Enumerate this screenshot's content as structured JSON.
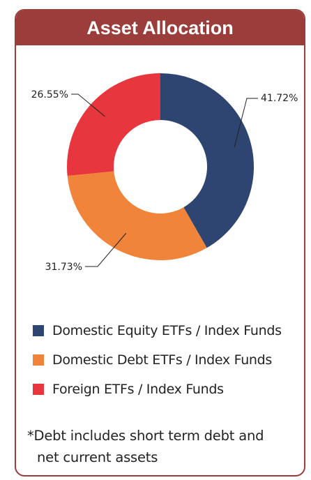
{
  "title": "Asset Allocation",
  "chart_data": {
    "type": "pie",
    "donut": true,
    "categories": [
      "Domestic Equity ETFs / Index Funds",
      "Domestic Debt ETFs / Index Funds",
      "Foreign ETFs / Index Funds"
    ],
    "values": [
      41.72,
      31.73,
      26.55
    ],
    "value_labels": [
      "41.72%",
      "31.73%",
      "26.55%"
    ],
    "colors": [
      "#2d4570",
      "#f0843a",
      "#e8363f"
    ],
    "legend_position": "bottom"
  },
  "legend": [
    {
      "label": "Domestic Equity ETFs / Index Funds",
      "color": "#2d4570"
    },
    {
      "label": "Domestic Debt ETFs / Index Funds",
      "color": "#f0843a"
    },
    {
      "label": "Foreign ETFs / Index Funds",
      "color": "#e8363f"
    }
  ],
  "note": {
    "line1": "*Debt includes short term debt and",
    "line2": "net current assets"
  },
  "colors": {
    "border": "#9b3d3a",
    "header_bg": "#9b3d3a",
    "header_text": "#ffffff"
  }
}
